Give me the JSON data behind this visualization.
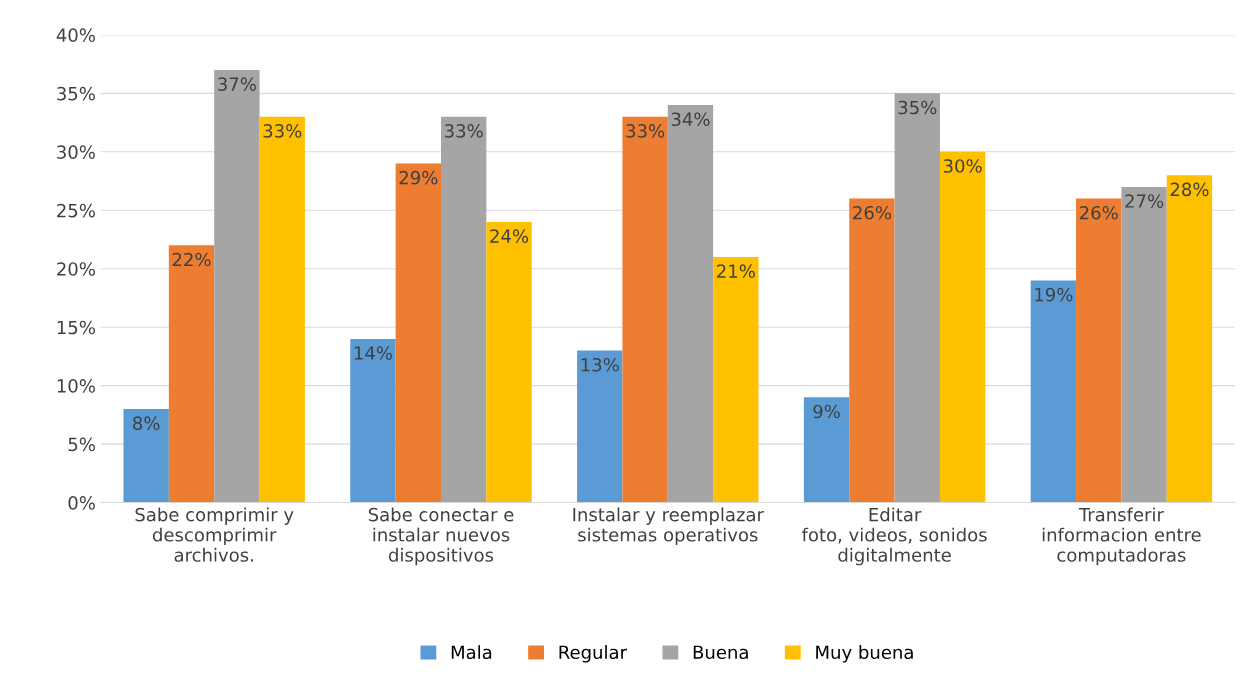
{
  "chart_data": {
    "type": "bar",
    "categories": [
      "Sabe comprimir y\ndescomprimir\narchivos.",
      "Sabe conectar e\ninstalar nuevos\ndispositivos",
      "Instalar y reemplazar\nsistemas operativos",
      "Editar\nfoto, videos, sonidos\ndigitalmente",
      "Transferir\ninformacion entre\ncomputadoras"
    ],
    "series": [
      {
        "name": "Mala",
        "color": "#5b9bd5",
        "values": [
          8,
          14,
          13,
          9,
          19
        ],
        "value_labels": [
          "8%",
          "14%",
          "13%",
          "9%",
          "19%"
        ]
      },
      {
        "name": "Regular",
        "color": "#ed7d31",
        "values": [
          22,
          29,
          33,
          26,
          26
        ],
        "value_labels": [
          "22%",
          "29%",
          "33%",
          "26%",
          "26%"
        ]
      },
      {
        "name": "Buena",
        "color": "#a5a5a5",
        "values": [
          37,
          33,
          34,
          35,
          27
        ],
        "value_labels": [
          "37%",
          "33%",
          "34%",
          "35%",
          "27%"
        ]
      },
      {
        "name": "Muy buena",
        "color": "#ffc000",
        "values": [
          33,
          24,
          21,
          30,
          28
        ],
        "value_labels": [
          "33%",
          "24%",
          "21%",
          "30%",
          "28%"
        ]
      }
    ],
    "ylim": [
      0,
      40
    ],
    "yticks": [
      {
        "value": 0,
        "label": "0%"
      },
      {
        "value": 5,
        "label": "5%"
      },
      {
        "value": 10,
        "label": "10%"
      },
      {
        "value": 15,
        "label": "15%"
      },
      {
        "value": 20,
        "label": "20%"
      },
      {
        "value": 25,
        "label": "25%"
      },
      {
        "value": 30,
        "label": "30%"
      },
      {
        "value": 35,
        "label": "35%"
      },
      {
        "value": 40,
        "label": "40%"
      }
    ],
    "grid": "y",
    "legend": "bottom"
  }
}
